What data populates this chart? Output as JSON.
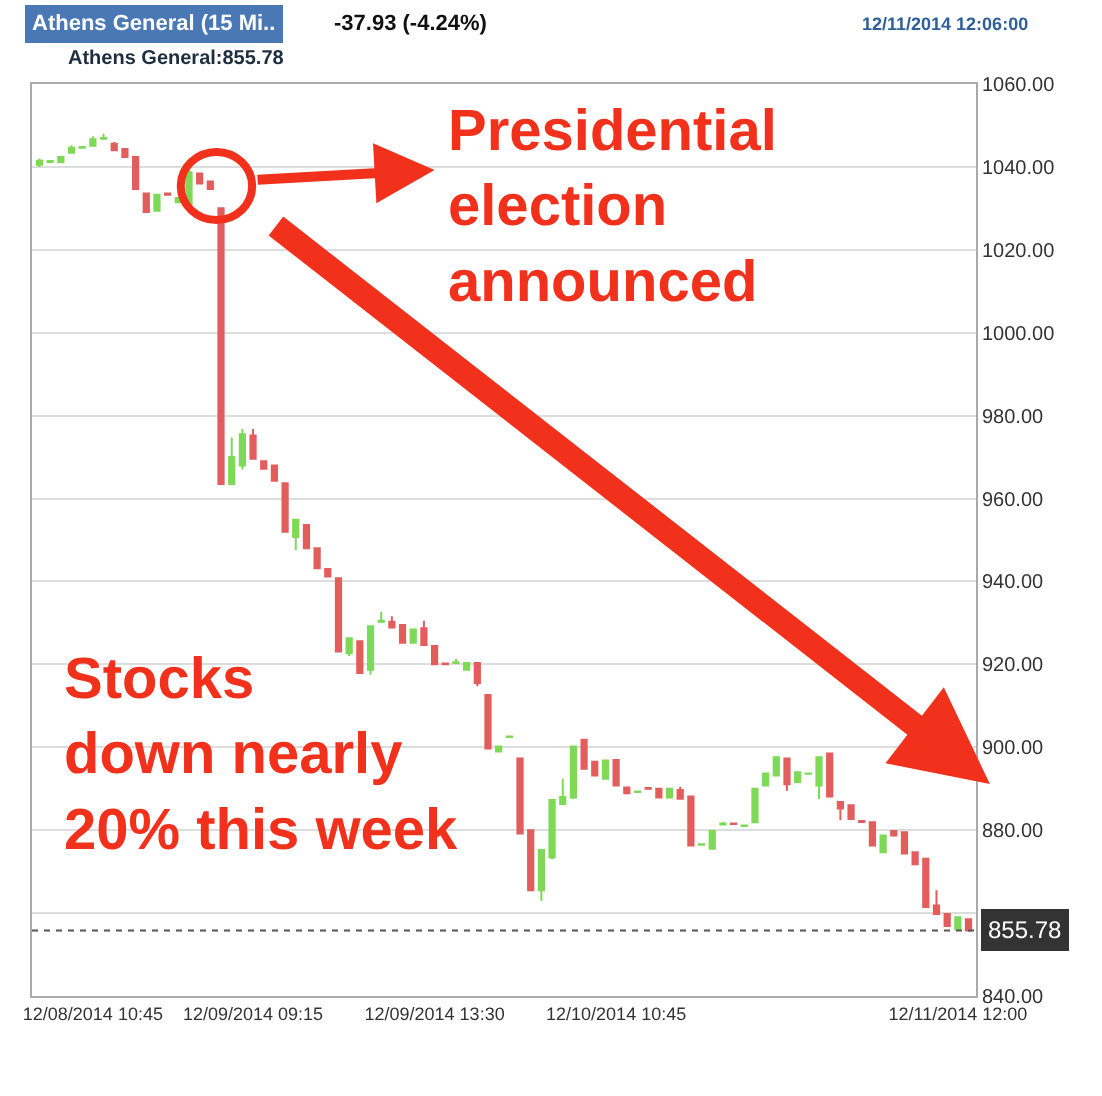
{
  "chart_data": {
    "type": "candlestick",
    "title": "Athens General (15 Mi..",
    "subtitle": "Athens General:855.78",
    "annotations": [
      "-37.93 (-4.24%)",
      "12/11/2014 12:06:00",
      "Presidential\nelection\nannounced",
      "Stocks\ndown nearly\n20% this week"
    ],
    "categories": [
      null,
      null,
      null,
      null,
      null,
      "12/08/2014 10:45",
      null,
      null,
      null,
      null,
      null,
      null,
      null,
      null,
      null,
      null,
      null,
      null,
      null,
      null,
      "12/09/2014 09:15",
      null,
      null,
      null,
      null,
      null,
      null,
      null,
      null,
      null,
      null,
      null,
      null,
      null,
      null,
      null,
      null,
      "12/09/2014 13:30",
      null,
      null,
      null,
      null,
      null,
      null,
      null,
      null,
      null,
      null,
      null,
      null,
      null,
      null,
      null,
      null,
      "12/10/2014 10:45",
      null,
      null,
      null,
      null,
      null,
      null,
      null,
      null,
      null,
      null,
      null,
      null,
      null,
      null,
      null,
      null,
      null,
      null,
      null,
      null,
      null,
      null,
      null,
      null,
      null,
      null,
      null,
      null,
      null,
      null,
      null,
      "12/11/2014 12:00",
      null
    ],
    "ohlc": [
      [
        1040.5,
        1042,
        1040,
        1041.5
      ],
      [
        1041.2,
        1041.6,
        1041,
        1041.4
      ],
      [
        1041.1,
        1042.6,
        1041,
        1042.4
      ],
      [
        1043.4,
        1045.2,
        1043.2,
        1044.6
      ],
      [
        1044.6,
        1045,
        1044.5,
        1044.8
      ],
      [
        1045.1,
        1047.4,
        1045,
        1046.7
      ],
      [
        1046.8,
        1048,
        1046.7,
        1047
      ],
      [
        1045.6,
        1046,
        1044,
        1044
      ],
      [
        1044.3,
        1044.5,
        1042.4,
        1042.4
      ],
      [
        1042.4,
        1042.6,
        1034.7,
        1034.7
      ],
      [
        1033.6,
        1033.8,
        1029.1,
        1029.1
      ],
      [
        1029.4,
        1033.5,
        1029.2,
        1033.3
      ],
      [
        1033.6,
        1033.8,
        1033.2,
        1033.3
      ],
      [
        1031.5,
        1032.7,
        1031.3,
        1032.5
      ],
      [
        1031,
        1039.2,
        1030,
        1038.7
      ],
      [
        1038.4,
        1038.6,
        1036,
        1036
      ],
      [
        1036.5,
        1036.7,
        1034.7,
        1034.7
      ],
      [
        1030,
        1030,
        963.5,
        963.5
      ],
      [
        963.5,
        974.7,
        963.3,
        970
      ],
      [
        968,
        976.8,
        967,
        975.5
      ],
      [
        975.2,
        976.8,
        969.6,
        969.6
      ],
      [
        969,
        969.2,
        967.2,
        967.2
      ],
      [
        968,
        968.2,
        964.3,
        964.3
      ],
      [
        963.7,
        963.9,
        952,
        952
      ],
      [
        950.7,
        955,
        947.5,
        954.9
      ],
      [
        953.6,
        953.8,
        948,
        948
      ],
      [
        948,
        948.2,
        943.2,
        943.2
      ],
      [
        943,
        943.2,
        941,
        941.2
      ],
      [
        940.8,
        941,
        923.1,
        923.1
      ],
      [
        922.7,
        926.5,
        922,
        926.3
      ],
      [
        925.6,
        925.8,
        917.9,
        917.9
      ],
      [
        918.7,
        929.4,
        917.5,
        929.2
      ],
      [
        930.3,
        932.7,
        930,
        930.5
      ],
      [
        930.3,
        931.6,
        928.9,
        928.9
      ],
      [
        929.5,
        929.7,
        925.2,
        925.2
      ],
      [
        925.2,
        928.6,
        925,
        928.4
      ],
      [
        928.7,
        930.5,
        924.7,
        924.7
      ],
      [
        924.4,
        924.6,
        920,
        920
      ],
      [
        920.2,
        920.4,
        919.8,
        920
      ],
      [
        920.3,
        921.3,
        920.1,
        920.5
      ],
      [
        918.7,
        920.5,
        918.5,
        920.3
      ],
      [
        920.3,
        920.5,
        914.7,
        915.5
      ],
      [
        912.6,
        912.8,
        899.7,
        899.7
      ],
      [
        899,
        900.4,
        898.8,
        900.2
      ],
      [
        902.5,
        902.8,
        902.4,
        902.6
      ],
      [
        897.3,
        897.5,
        879.2,
        879.2
      ],
      [
        880,
        880.2,
        865.5,
        865.5
      ],
      [
        865.5,
        875.4,
        863,
        875.2
      ],
      [
        873.4,
        887.5,
        873,
        887.3
      ],
      [
        886.3,
        892.4,
        886,
        888
      ],
      [
        887.9,
        900.4,
        887.5,
        900.2
      ],
      [
        901.8,
        902,
        894.8,
        894.8
      ],
      [
        896.5,
        896.7,
        893.2,
        893.2
      ],
      [
        892.4,
        897,
        892.2,
        896.8
      ],
      [
        896.9,
        897.1,
        890.8,
        890.8
      ],
      [
        890.3,
        890.5,
        888.9,
        888.9
      ],
      [
        889.2,
        889.6,
        889,
        889.3
      ],
      [
        890.2,
        890.4,
        889.8,
        890
      ],
      [
        890,
        890.2,
        887.9,
        887.9
      ],
      [
        887.9,
        890.2,
        887.7,
        890
      ],
      [
        889.7,
        890.5,
        887.6,
        887.6
      ],
      [
        888.1,
        888.3,
        876.3,
        876.3
      ],
      [
        876.5,
        876.8,
        876.3,
        876.6
      ],
      [
        875.5,
        880,
        875.3,
        879.8
      ],
      [
        881.4,
        882,
        881.2,
        881.6
      ],
      [
        881.6,
        881.8,
        881.3,
        881.5
      ],
      [
        881,
        881.3,
        880.9,
        881.1
      ],
      [
        881.9,
        890.2,
        881.7,
        890
      ],
      [
        890.8,
        893.9,
        890.6,
        893.7
      ],
      [
        893.2,
        897.8,
        893,
        897.6
      ],
      [
        897.3,
        897.5,
        889.5,
        891.1
      ],
      [
        891.6,
        894.2,
        891.4,
        894
      ],
      [
        893.6,
        893.9,
        893.5,
        893.7
      ],
      [
        890.8,
        897.8,
        887.5,
        897.6
      ],
      [
        898.5,
        898.7,
        888.1,
        888.1
      ],
      [
        886.8,
        887,
        882.4,
        885.2
      ],
      [
        886,
        886.2,
        882.7,
        882.7
      ],
      [
        882.2,
        882.4,
        881.8,
        882
      ],
      [
        881.9,
        882.1,
        876.3,
        876.3
      ],
      [
        874.7,
        878.9,
        874.5,
        878.7
      ],
      [
        879.8,
        880,
        878.7,
        878.7
      ],
      [
        879.5,
        879.7,
        874.4,
        874.4
      ],
      [
        874.7,
        874.9,
        871.8,
        871.8
      ],
      [
        873.1,
        873.3,
        861.5,
        861.5
      ],
      [
        861.8,
        865.5,
        859.8,
        859.8
      ],
      [
        859.8,
        860,
        856.9,
        856.9
      ],
      [
        856.1,
        859.2,
        855.9,
        859
      ],
      [
        858.5,
        858.7,
        855.78,
        855.78
      ]
    ],
    "colors": [
      "#7ed957",
      "#7ed957",
      "#7ed957",
      "#7ed957",
      "#7ed957",
      "#7ed957",
      "#7ed957",
      "#e35d5d",
      "#e35d5d",
      "#e35d5d",
      "#e35d5d",
      "#7ed957",
      "#e35d5d",
      "#7ed957",
      "#7ed957",
      "#e35d5d",
      "#e35d5d",
      "#e35d5d",
      "#7ed957",
      "#7ed957",
      "#e35d5d",
      "#e35d5d",
      "#e35d5d",
      "#e35d5d",
      "#7ed957",
      "#e35d5d",
      "#e35d5d",
      "#e35d5d",
      "#e35d5d",
      "#7ed957",
      "#e35d5d",
      "#7ed957",
      "#7ed957",
      "#e35d5d",
      "#e35d5d",
      "#7ed957",
      "#e35d5d",
      "#e35d5d",
      "#e35d5d",
      "#7ed957",
      "#7ed957",
      "#e35d5d",
      "#e35d5d",
      "#7ed957",
      "#7ed957",
      "#e35d5d",
      "#e35d5d",
      "#7ed957",
      "#7ed957",
      "#7ed957",
      "#7ed957",
      "#e35d5d",
      "#e35d5d",
      "#7ed957",
      "#e35d5d",
      "#e35d5d",
      "#7ed957",
      "#e35d5d",
      "#e35d5d",
      "#7ed957",
      "#e35d5d",
      "#e35d5d",
      "#7ed957",
      "#7ed957",
      "#7ed957",
      "#e35d5d",
      "#7ed957",
      "#7ed957",
      "#7ed957",
      "#7ed957",
      "#e35d5d",
      "#7ed957",
      "#7ed957",
      "#7ed957",
      "#e35d5d",
      "#e35d5d",
      "#e35d5d",
      "#e35d5d",
      "#e35d5d",
      "#7ed957",
      "#e35d5d",
      "#e35d5d",
      "#e35d5d",
      "#e35d5d",
      "#e35d5d",
      "#e35d5d",
      "#7ed957",
      "#e35d5d"
    ],
    "ylim": [
      840,
      1060
    ],
    "yticks": [
      {
        "value": 840,
        "label": "840.00"
      },
      {
        "value": 860,
        "label": null
      },
      {
        "value": 880,
        "label": "880.00"
      },
      {
        "value": 900,
        "label": "900.00"
      },
      {
        "value": 920,
        "label": "920.00"
      },
      {
        "value": 940,
        "label": "940.00"
      },
      {
        "value": 960,
        "label": "960.00"
      },
      {
        "value": 980,
        "label": "980.00"
      },
      {
        "value": 1000,
        "label": "1000.00"
      },
      {
        "value": 1020,
        "label": "1020.00"
      },
      {
        "value": 1040,
        "label": "1040.00"
      },
      {
        "value": 1060,
        "label": "1060.00"
      }
    ],
    "ref_lines": [
      {
        "axis": "y",
        "value": 855.78,
        "label": "855.78",
        "color": "#555555",
        "line_style": "dotted"
      }
    ],
    "grid": "y"
  }
}
